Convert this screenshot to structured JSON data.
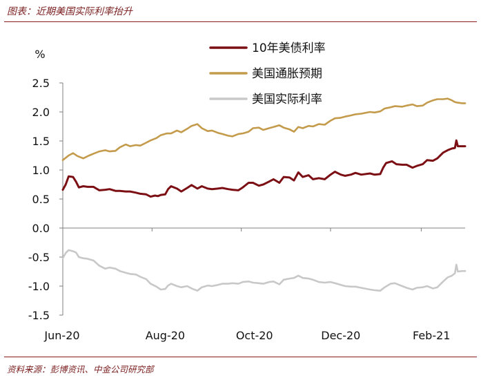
{
  "caption": {
    "title": "图表：近期美国实际利率抬升",
    "source": "资料来源：彭博资讯、中金公司研究部"
  },
  "chart_data": {
    "type": "line",
    "y_unit": "%",
    "ylim": [
      -1.5,
      2.5
    ],
    "y_ticks": [
      2.5,
      2.0,
      1.5,
      1.0,
      0.5,
      0.0,
      -0.5,
      -1.0,
      -1.5
    ],
    "y_tick_labels": [
      "2.5",
      "2.0",
      "1.5",
      "1.0",
      "0.5",
      "0.0",
      "-0.5",
      "-1.0",
      "-1.5"
    ],
    "x_ticks": [
      "Jun-20",
      "Aug-20",
      "Oct-20",
      "Dec-20",
      "Feb-21"
    ],
    "grid": false,
    "legend": "top-right",
    "series": [
      {
        "name": "10年美债利率",
        "color": "#7b0f14",
        "points": [
          [
            "2020-06-01",
            0.66
          ],
          [
            "2020-06-03",
            0.75
          ],
          [
            "2020-06-05",
            0.89
          ],
          [
            "2020-06-08",
            0.88
          ],
          [
            "2020-06-10",
            0.8
          ],
          [
            "2020-06-12",
            0.7
          ],
          [
            "2020-06-15",
            0.72
          ],
          [
            "2020-06-18",
            0.71
          ],
          [
            "2020-06-22",
            0.71
          ],
          [
            "2020-06-26",
            0.65
          ],
          [
            "2020-06-30",
            0.66
          ],
          [
            "2020-07-03",
            0.67
          ],
          [
            "2020-07-07",
            0.64
          ],
          [
            "2020-07-10",
            0.64
          ],
          [
            "2020-07-14",
            0.63
          ],
          [
            "2020-07-17",
            0.63
          ],
          [
            "2020-07-21",
            0.61
          ],
          [
            "2020-07-24",
            0.59
          ],
          [
            "2020-07-28",
            0.58
          ],
          [
            "2020-07-31",
            0.54
          ],
          [
            "2020-08-03",
            0.56
          ],
          [
            "2020-08-05",
            0.55
          ],
          [
            "2020-08-07",
            0.57
          ],
          [
            "2020-08-10",
            0.58
          ],
          [
            "2020-08-12",
            0.67
          ],
          [
            "2020-08-14",
            0.72
          ],
          [
            "2020-08-18",
            0.68
          ],
          [
            "2020-08-21",
            0.63
          ],
          [
            "2020-08-25",
            0.69
          ],
          [
            "2020-08-28",
            0.74
          ],
          [
            "2020-09-01",
            0.68
          ],
          [
            "2020-09-04",
            0.72
          ],
          [
            "2020-09-08",
            0.68
          ],
          [
            "2020-09-11",
            0.67
          ],
          [
            "2020-09-15",
            0.68
          ],
          [
            "2020-09-18",
            0.69
          ],
          [
            "2020-09-22",
            0.67
          ],
          [
            "2020-09-25",
            0.66
          ],
          [
            "2020-09-29",
            0.65
          ],
          [
            "2020-10-02",
            0.7
          ],
          [
            "2020-10-06",
            0.78
          ],
          [
            "2020-10-09",
            0.78
          ],
          [
            "2020-10-13",
            0.73
          ],
          [
            "2020-10-16",
            0.75
          ],
          [
            "2020-10-20",
            0.8
          ],
          [
            "2020-10-23",
            0.84
          ],
          [
            "2020-10-27",
            0.78
          ],
          [
            "2020-10-30",
            0.88
          ],
          [
            "2020-11-03",
            0.87
          ],
          [
            "2020-11-06",
            0.82
          ],
          [
            "2020-11-09",
            0.96
          ],
          [
            "2020-11-12",
            0.88
          ],
          [
            "2020-11-16",
            0.91
          ],
          [
            "2020-11-19",
            0.84
          ],
          [
            "2020-11-23",
            0.86
          ],
          [
            "2020-11-27",
            0.84
          ],
          [
            "2020-12-01",
            0.92
          ],
          [
            "2020-12-04",
            0.97
          ],
          [
            "2020-12-08",
            0.92
          ],
          [
            "2020-12-11",
            0.9
          ],
          [
            "2020-12-15",
            0.92
          ],
          [
            "2020-12-18",
            0.95
          ],
          [
            "2020-12-22",
            0.92
          ],
          [
            "2020-12-28",
            0.94
          ],
          [
            "2020-12-31",
            0.92
          ],
          [
            "2021-01-04",
            0.93
          ],
          [
            "2021-01-06",
            1.04
          ],
          [
            "2021-01-08",
            1.12
          ],
          [
            "2021-01-12",
            1.15
          ],
          [
            "2021-01-15",
            1.1
          ],
          [
            "2021-01-19",
            1.09
          ],
          [
            "2021-01-22",
            1.09
          ],
          [
            "2021-01-26",
            1.04
          ],
          [
            "2021-01-29",
            1.07
          ],
          [
            "2021-02-02",
            1.1
          ],
          [
            "2021-02-05",
            1.17
          ],
          [
            "2021-02-09",
            1.16
          ],
          [
            "2021-02-12",
            1.2
          ],
          [
            "2021-02-16",
            1.3
          ],
          [
            "2021-02-19",
            1.34
          ],
          [
            "2021-02-22",
            1.37
          ],
          [
            "2021-02-24",
            1.38
          ],
          [
            "2021-02-25",
            1.51
          ],
          [
            "2021-02-26",
            1.41
          ],
          [
            "2021-03-01",
            1.41
          ],
          [
            "2021-03-03",
            1.41
          ]
        ]
      },
      {
        "name": "美国通胀预期",
        "color": "#c49a4b",
        "points": [
          [
            "2020-06-01",
            1.17
          ],
          [
            "2020-06-05",
            1.25
          ],
          [
            "2020-06-08",
            1.29
          ],
          [
            "2020-06-11",
            1.24
          ],
          [
            "2020-06-15",
            1.2
          ],
          [
            "2020-06-19",
            1.25
          ],
          [
            "2020-06-23",
            1.29
          ],
          [
            "2020-06-26",
            1.32
          ],
          [
            "2020-06-30",
            1.34
          ],
          [
            "2020-07-03",
            1.32
          ],
          [
            "2020-07-07",
            1.33
          ],
          [
            "2020-07-10",
            1.39
          ],
          [
            "2020-07-14",
            1.44
          ],
          [
            "2020-07-17",
            1.41
          ],
          [
            "2020-07-21",
            1.43
          ],
          [
            "2020-07-24",
            1.42
          ],
          [
            "2020-07-28",
            1.47
          ],
          [
            "2020-07-31",
            1.51
          ],
          [
            "2020-08-04",
            1.55
          ],
          [
            "2020-08-07",
            1.6
          ],
          [
            "2020-08-11",
            1.63
          ],
          [
            "2020-08-14",
            1.63
          ],
          [
            "2020-08-18",
            1.68
          ],
          [
            "2020-08-21",
            1.65
          ],
          [
            "2020-08-25",
            1.71
          ],
          [
            "2020-08-28",
            1.76
          ],
          [
            "2020-09-01",
            1.79
          ],
          [
            "2020-09-04",
            1.72
          ],
          [
            "2020-09-08",
            1.67
          ],
          [
            "2020-09-11",
            1.68
          ],
          [
            "2020-09-15",
            1.64
          ],
          [
            "2020-09-18",
            1.62
          ],
          [
            "2020-09-22",
            1.59
          ],
          [
            "2020-09-25",
            1.58
          ],
          [
            "2020-09-29",
            1.62
          ],
          [
            "2020-10-02",
            1.63
          ],
          [
            "2020-10-06",
            1.66
          ],
          [
            "2020-10-09",
            1.72
          ],
          [
            "2020-10-13",
            1.73
          ],
          [
            "2020-10-16",
            1.69
          ],
          [
            "2020-10-20",
            1.72
          ],
          [
            "2020-10-23",
            1.74
          ],
          [
            "2020-10-27",
            1.77
          ],
          [
            "2020-10-30",
            1.73
          ],
          [
            "2020-11-03",
            1.7
          ],
          [
            "2020-11-06",
            1.66
          ],
          [
            "2020-11-09",
            1.74
          ],
          [
            "2020-11-12",
            1.72
          ],
          [
            "2020-11-16",
            1.76
          ],
          [
            "2020-11-19",
            1.75
          ],
          [
            "2020-11-23",
            1.79
          ],
          [
            "2020-11-27",
            1.78
          ],
          [
            "2020-12-01",
            1.85
          ],
          [
            "2020-12-04",
            1.89
          ],
          [
            "2020-12-08",
            1.9
          ],
          [
            "2020-12-11",
            1.92
          ],
          [
            "2020-12-15",
            1.94
          ],
          [
            "2020-12-18",
            1.96
          ],
          [
            "2020-12-22",
            1.97
          ],
          [
            "2020-12-28",
            2.0
          ],
          [
            "2020-12-31",
            1.99
          ],
          [
            "2021-01-04",
            2.01
          ],
          [
            "2021-01-07",
            2.06
          ],
          [
            "2021-01-11",
            2.08
          ],
          [
            "2021-01-14",
            2.1
          ],
          [
            "2021-01-19",
            2.09
          ],
          [
            "2021-01-22",
            2.11
          ],
          [
            "2021-01-26",
            2.13
          ],
          [
            "2021-01-29",
            2.1
          ],
          [
            "2021-02-02",
            2.11
          ],
          [
            "2021-02-05",
            2.16
          ],
          [
            "2021-02-09",
            2.2
          ],
          [
            "2021-02-12",
            2.22
          ],
          [
            "2021-02-16",
            2.22
          ],
          [
            "2021-02-19",
            2.23
          ],
          [
            "2021-02-22",
            2.2
          ],
          [
            "2021-02-24",
            2.17
          ],
          [
            "2021-02-26",
            2.16
          ],
          [
            "2021-03-01",
            2.15
          ],
          [
            "2021-03-03",
            2.15
          ]
        ]
      },
      {
        "name": "美国实际利率",
        "color": "#c8c8c8",
        "points": [
          [
            "2020-06-01",
            -0.52
          ],
          [
            "2020-06-03",
            -0.43
          ],
          [
            "2020-06-05",
            -0.38
          ],
          [
            "2020-06-08",
            -0.4
          ],
          [
            "2020-06-10",
            -0.42
          ],
          [
            "2020-06-12",
            -0.5
          ],
          [
            "2020-06-15",
            -0.52
          ],
          [
            "2020-06-18",
            -0.53
          ],
          [
            "2020-06-22",
            -0.56
          ],
          [
            "2020-06-26",
            -0.65
          ],
          [
            "2020-06-30",
            -0.7
          ],
          [
            "2020-07-03",
            -0.68
          ],
          [
            "2020-07-07",
            -0.7
          ],
          [
            "2020-07-10",
            -0.74
          ],
          [
            "2020-07-14",
            -0.77
          ],
          [
            "2020-07-17",
            -0.79
          ],
          [
            "2020-07-21",
            -0.8
          ],
          [
            "2020-07-24",
            -0.84
          ],
          [
            "2020-07-28",
            -0.88
          ],
          [
            "2020-07-31",
            -0.96
          ],
          [
            "2020-08-04",
            -1.01
          ],
          [
            "2020-08-07",
            -1.06
          ],
          [
            "2020-08-10",
            -1.05
          ],
          [
            "2020-08-12",
            -0.99
          ],
          [
            "2020-08-14",
            -0.96
          ],
          [
            "2020-08-18",
            -1.0
          ],
          [
            "2020-08-21",
            -1.02
          ],
          [
            "2020-08-25",
            -1.0
          ],
          [
            "2020-08-28",
            -1.04
          ],
          [
            "2020-09-01",
            -1.08
          ],
          [
            "2020-09-04",
            -1.02
          ],
          [
            "2020-09-08",
            -0.99
          ],
          [
            "2020-09-11",
            -1.0
          ],
          [
            "2020-09-15",
            -0.98
          ],
          [
            "2020-09-18",
            -0.96
          ],
          [
            "2020-09-22",
            -0.96
          ],
          [
            "2020-09-25",
            -0.95
          ],
          [
            "2020-09-29",
            -0.96
          ],
          [
            "2020-10-02",
            -0.93
          ],
          [
            "2020-10-06",
            -0.92
          ],
          [
            "2020-10-09",
            -0.94
          ],
          [
            "2020-10-13",
            -0.95
          ],
          [
            "2020-10-16",
            -0.96
          ],
          [
            "2020-10-20",
            -0.93
          ],
          [
            "2020-10-23",
            -0.92
          ],
          [
            "2020-10-27",
            -0.97
          ],
          [
            "2020-10-30",
            -0.89
          ],
          [
            "2020-11-03",
            -0.87
          ],
          [
            "2020-11-06",
            -0.86
          ],
          [
            "2020-11-09",
            -0.82
          ],
          [
            "2020-11-12",
            -0.86
          ],
          [
            "2020-11-16",
            -0.87
          ],
          [
            "2020-11-19",
            -0.89
          ],
          [
            "2020-11-23",
            -0.93
          ],
          [
            "2020-11-27",
            -0.94
          ],
          [
            "2020-12-01",
            -0.93
          ],
          [
            "2020-12-04",
            -0.95
          ],
          [
            "2020-12-08",
            -0.98
          ],
          [
            "2020-12-11",
            -1.0
          ],
          [
            "2020-12-15",
            -1.01
          ],
          [
            "2020-12-18",
            -1.01
          ],
          [
            "2020-12-22",
            -1.03
          ],
          [
            "2020-12-28",
            -1.06
          ],
          [
            "2020-12-31",
            -1.07
          ],
          [
            "2021-01-04",
            -1.08
          ],
          [
            "2021-01-07",
            -1.02
          ],
          [
            "2021-01-11",
            -0.96
          ],
          [
            "2021-01-14",
            -0.95
          ],
          [
            "2021-01-19",
            -1.0
          ],
          [
            "2021-01-22",
            -1.03
          ],
          [
            "2021-01-26",
            -1.06
          ],
          [
            "2021-01-29",
            -1.03
          ],
          [
            "2021-02-02",
            -1.02
          ],
          [
            "2021-02-05",
            -1.0
          ],
          [
            "2021-02-09",
            -1.04
          ],
          [
            "2021-02-12",
            -1.02
          ],
          [
            "2021-02-16",
            -0.92
          ],
          [
            "2021-02-19",
            -0.85
          ],
          [
            "2021-02-22",
            -0.82
          ],
          [
            "2021-02-24",
            -0.78
          ],
          [
            "2021-02-25",
            -0.63
          ],
          [
            "2021-02-26",
            -0.75
          ],
          [
            "2021-03-01",
            -0.74
          ],
          [
            "2021-03-03",
            -0.74
          ]
        ]
      }
    ]
  }
}
